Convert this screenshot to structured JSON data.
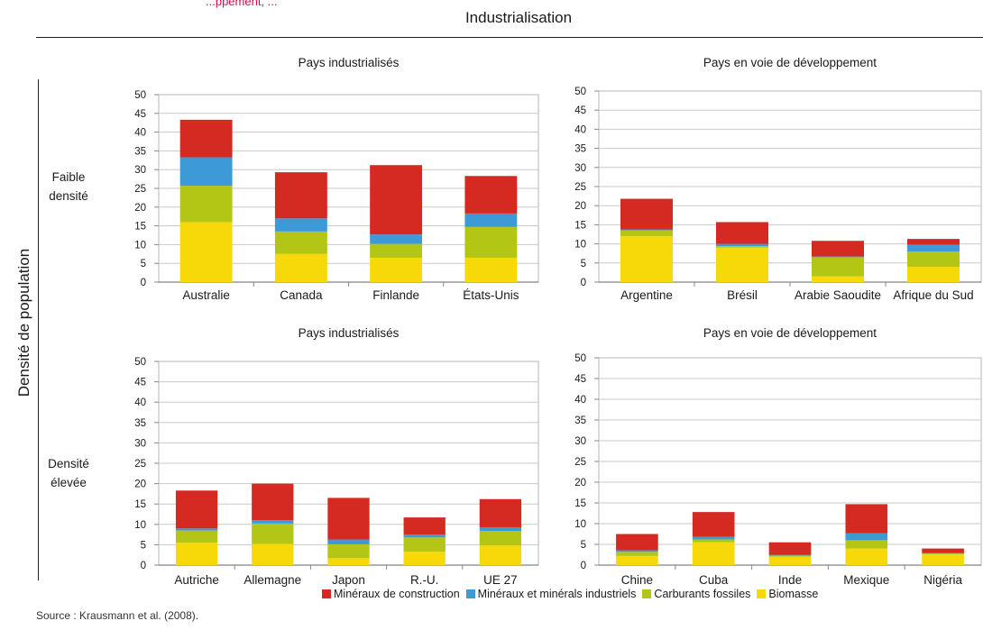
{
  "header": {
    "title": "Industrialisation",
    "y_title": "Densité de population",
    "row_labels": [
      "Faible\ndensité",
      "Densité\nélevée"
    ],
    "snippet": "...ppement, ...",
    "source": "Source : Krausmann et al. (2008)."
  },
  "legend": [
    {
      "label": "Minéraux de construction",
      "color": "#d42a22"
    },
    {
      "label": "Minéraux et minérals industriels",
      "color": "#3d9ad6"
    },
    {
      "label": "Carburants fossiles",
      "color": "#b3c615"
    },
    {
      "label": "Biomasse",
      "color": "#f7d90a"
    }
  ],
  "chart_data": [
    {
      "type": "bar",
      "stacked": true,
      "title": "Pays industrialisés",
      "ylim": [
        0,
        50
      ],
      "yticks": [
        0,
        5,
        10,
        15,
        20,
        25,
        30,
        35,
        40,
        45,
        50
      ],
      "grid": true,
      "categories": [
        "Australie",
        "Canada",
        "Finlande",
        "États-Unis"
      ],
      "series": [
        {
          "name": "Biomasse",
          "values": [
            16,
            7.5,
            6.5,
            6.5
          ]
        },
        {
          "name": "Carburants fossiles",
          "values": [
            9.7,
            6,
            3.7,
            8.2
          ]
        },
        {
          "name": "Minéraux et minérals industriels",
          "values": [
            7.6,
            3.5,
            2.5,
            3.6
          ]
        },
        {
          "name": "Minéraux de construction",
          "values": [
            10,
            12.3,
            18.5,
            10
          ]
        }
      ]
    },
    {
      "type": "bar",
      "stacked": true,
      "title": "Pays en voie de développement",
      "ylim": [
        0,
        50
      ],
      "yticks": [
        0,
        5,
        10,
        15,
        20,
        25,
        30,
        35,
        40,
        45,
        50
      ],
      "grid": true,
      "categories": [
        "Argentine",
        "Brésil",
        "Arabie Saoudite",
        "Afrique du Sud"
      ],
      "series": [
        {
          "name": "Biomasse",
          "values": [
            12,
            9,
            1.5,
            4
          ]
        },
        {
          "name": "Carburants fossiles",
          "values": [
            1.5,
            0.4,
            5,
            4
          ]
        },
        {
          "name": "Minéraux et minérals industriels",
          "values": [
            0.3,
            0.6,
            0.2,
            1.8
          ]
        },
        {
          "name": "Minéraux de construction",
          "values": [
            8,
            5.7,
            4.1,
            1.5
          ]
        }
      ]
    },
    {
      "type": "bar",
      "stacked": true,
      "title": "Pays industrialisés",
      "ylim": [
        0,
        50
      ],
      "yticks": [
        0,
        5,
        10,
        15,
        20,
        25,
        30,
        35,
        40,
        45,
        50
      ],
      "grid": true,
      "categories": [
        "Autriche",
        "Allemagne",
        "Japon",
        "R.-U.",
        "UE 27"
      ],
      "series": [
        {
          "name": "Biomasse",
          "values": [
            5.5,
            5.2,
            1.7,
            3.3,
            4.8
          ]
        },
        {
          "name": "Carburants fossiles",
          "values": [
            3,
            5,
            3.4,
            3.5,
            3.6
          ]
        },
        {
          "name": "Minéraux et minérals industriels",
          "values": [
            0.5,
            0.8,
            1.2,
            0.7,
            0.9
          ]
        },
        {
          "name": "Minéraux de construction",
          "values": [
            9.3,
            9,
            10.2,
            4.2,
            6.9
          ]
        }
      ]
    },
    {
      "type": "bar",
      "stacked": true,
      "title": "Pays en voie de développement",
      "ylim": [
        0,
        50
      ],
      "yticks": [
        0,
        5,
        10,
        15,
        20,
        25,
        30,
        35,
        40,
        45,
        50
      ],
      "grid": true,
      "categories": [
        "Chine",
        "Cuba",
        "Inde",
        "Mexique",
        "Nigéria"
      ],
      "series": [
        {
          "name": "Biomasse",
          "values": [
            2.2,
            5.5,
            2,
            4,
            2.6
          ]
        },
        {
          "name": "Carburants fossiles",
          "values": [
            1,
            0.7,
            0.3,
            2,
            0.2
          ]
        },
        {
          "name": "Minéraux et minérals industriels",
          "values": [
            0.4,
            0.6,
            0.2,
            1.7,
            0.1
          ]
        },
        {
          "name": "Minéraux de construction",
          "values": [
            3.9,
            6,
            3,
            7,
            1.1
          ]
        }
      ]
    }
  ]
}
